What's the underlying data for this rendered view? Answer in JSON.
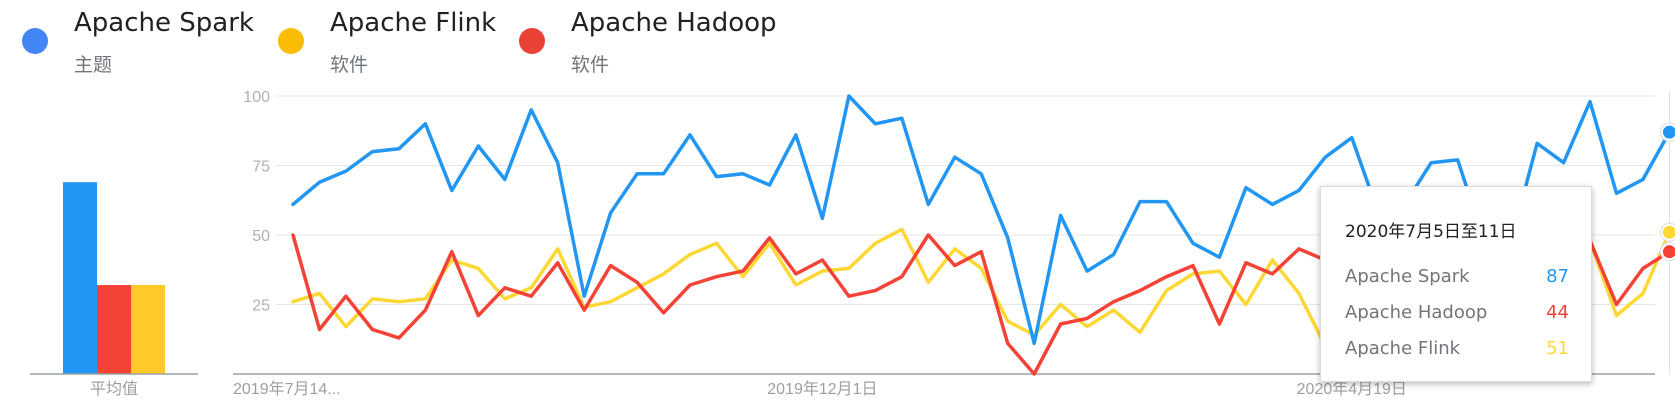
{
  "legend": [
    {
      "name": "Apache Spark",
      "sub": "主题",
      "color": "#4285f4"
    },
    {
      "name": "Apache Flink",
      "sub": "软件",
      "color": "#fbbc04"
    },
    {
      "name": "Apache Hadoop",
      "sub": "软件",
      "color": "#ea4335"
    }
  ],
  "average": {
    "label": "平均值",
    "bars": [
      {
        "series": "Apache Spark",
        "value": 69,
        "color": "#2196f3"
      },
      {
        "series": "Apache Hadoop",
        "value": 32,
        "color": "#f44336"
      },
      {
        "series": "Apache Flink",
        "value": 32,
        "color": "#ffca28"
      }
    ]
  },
  "tooltip": {
    "date": "2020年7月5日至11日",
    "rows": [
      {
        "name": "Apache Spark",
        "value": "87",
        "color": "#2196f3"
      },
      {
        "name": "Apache Hadoop",
        "value": "44",
        "color": "#f44336"
      },
      {
        "name": "Apache Flink",
        "value": "51",
        "color": "#fdd835"
      }
    ]
  },
  "chart_data": {
    "type": "line",
    "ylim": [
      0,
      100
    ],
    "yticks": [
      25,
      50,
      75,
      100
    ],
    "grid": true,
    "x_tick_labels": [
      {
        "week": 0,
        "label": "2019年7月14..."
      },
      {
        "week": 20,
        "label": "2019年12月1日"
      },
      {
        "week": 40,
        "label": "2020年4月19日"
      }
    ],
    "x_start": "2019年7月14日",
    "x_step": "1周",
    "series": [
      {
        "name": "Apache Spark",
        "color": "#2196f3",
        "values": [
          61,
          69,
          73,
          80,
          81,
          90,
          66,
          82,
          70,
          95,
          76,
          28,
          58,
          72,
          72,
          86,
          71,
          72,
          68,
          86,
          56,
          100,
          90,
          92,
          61,
          78,
          72,
          49,
          11,
          57,
          37,
          43,
          62,
          62,
          47,
          42,
          67,
          61,
          66,
          78,
          85,
          58,
          61,
          76,
          77,
          48,
          47,
          83,
          76,
          98,
          65,
          70,
          87
        ]
      },
      {
        "name": "Apache Hadoop",
        "color": "#f44336",
        "values": [
          50,
          16,
          28,
          16,
          13,
          23,
          44,
          21,
          31,
          28,
          40,
          23,
          39,
          33,
          22,
          32,
          35,
          37,
          49,
          36,
          41,
          28,
          30,
          35,
          50,
          39,
          44,
          11,
          0,
          18,
          20,
          26,
          30,
          35,
          39,
          18,
          40,
          36,
          45,
          41,
          26,
          30,
          31,
          37,
          40,
          28,
          33,
          35,
          40,
          48,
          25,
          38,
          44
        ]
      },
      {
        "name": "Apache Flink",
        "color": "#fdd835",
        "values": [
          26,
          29,
          17,
          27,
          26,
          27,
          41,
          38,
          27,
          31,
          45,
          24,
          26,
          31,
          36,
          43,
          47,
          35,
          47,
          32,
          37,
          38,
          47,
          52,
          33,
          45,
          38,
          19,
          14,
          25,
          17,
          23,
          15,
          30,
          36,
          37,
          25,
          41,
          29,
          10,
          38,
          42,
          29,
          32,
          42,
          32,
          52,
          32,
          32,
          48,
          21,
          29,
          51
        ]
      }
    ]
  }
}
